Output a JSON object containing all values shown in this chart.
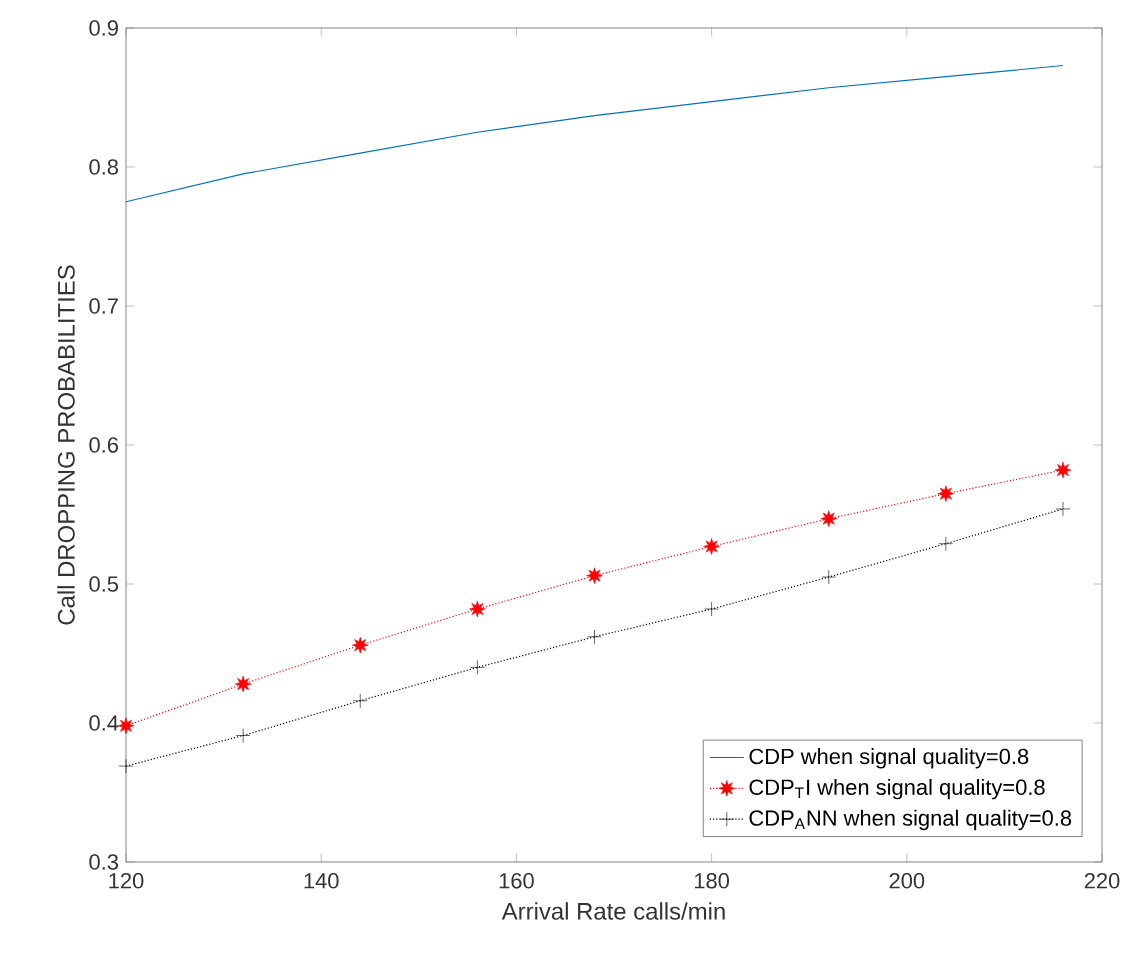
{
  "chart_data": {
    "type": "line",
    "xlabel": "Arrival Rate calls/min",
    "ylabel": "Call DROPPING PROBABILITIES",
    "x": [
      120,
      132,
      144,
      156,
      168,
      180,
      192,
      204,
      216
    ],
    "series": [
      {
        "name": "CDP when signal quality=0.8",
        "color": "#0072bd",
        "marker": "none",
        "line_style": "solid",
        "values": [
          0.775,
          0.795,
          0.81,
          0.825,
          0.837,
          0.847,
          0.857,
          0.865,
          0.873
        ]
      },
      {
        "name": "CDP$_{T}$I when signal quality=0.8",
        "color": "#ff0000",
        "marker": "star",
        "line_style": "dotted",
        "values": [
          0.398,
          0.428,
          0.456,
          0.482,
          0.506,
          0.527,
          0.547,
          0.565,
          0.582
        ]
      },
      {
        "name": "CDP$_{A}$NN when signal quality=0.8",
        "color": "#000000",
        "marker": "cross",
        "line_style": "dotted",
        "values": [
          0.369,
          0.391,
          0.416,
          0.44,
          0.462,
          0.482,
          0.505,
          0.529,
          0.554
        ]
      }
    ],
    "xlim": [
      120,
      220
    ],
    "ylim": [
      0.3,
      0.9
    ],
    "xticks": [
      120,
      140,
      160,
      180,
      200,
      220
    ],
    "yticks": [
      0.3,
      0.4,
      0.5,
      0.6,
      0.7,
      0.8,
      0.9
    ],
    "grid": false,
    "legend": "bottom right"
  }
}
